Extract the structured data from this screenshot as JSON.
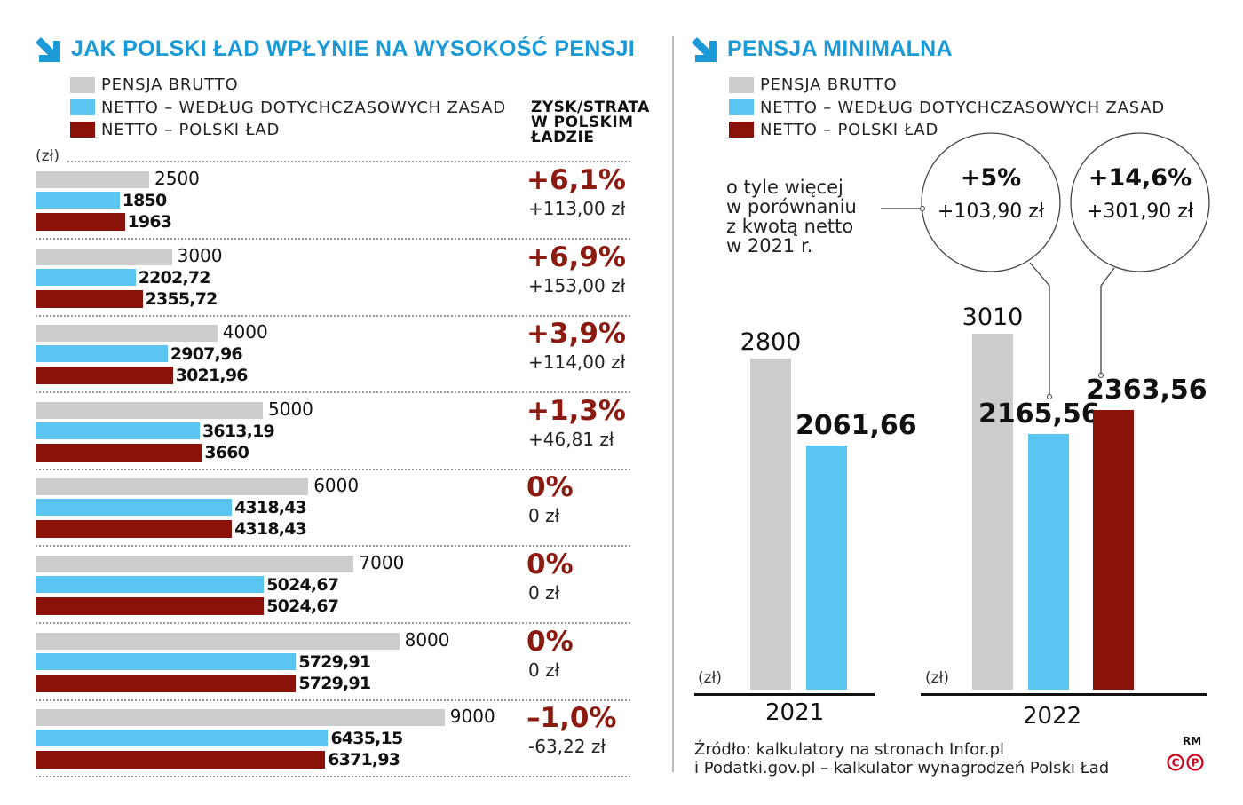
{
  "colors": {
    "title": "#1a9ad6",
    "brutto": "#cccccc",
    "netto_old": "#5bc5f2",
    "netto_new": "#8b1209",
    "gain_text": "#8b1a10"
  },
  "left": {
    "title": "JAK POLSKI ŁAD WPŁYNIE NA WYSOKOŚĆ PENSJI",
    "title_icon": "arrow-down-right-icon",
    "legend": [
      "PENSJA BRUTTO",
      "NETTO – WEDŁUG DOTYCHCZASOWYCH ZASAD",
      "NETTO – POLSKI ŁAD"
    ],
    "column_header": [
      "ZYSK/STRATA",
      "W POLSKIM",
      "ŁADZIE"
    ],
    "unit": "(zł)"
  },
  "right": {
    "title": "PENSJA MINIMALNA",
    "title_icon": "arrow-down-right-icon",
    "legend": [
      "PENSJA BRUTTO",
      "NETTO – WEDŁUG DOTYCHCZASOWYCH ZASAD",
      "NETTO – POLSKI ŁAD"
    ],
    "note": [
      "o tyle więcej",
      "w porównaniu",
      "z kwotą netto",
      "w 2021 r."
    ],
    "bubbles": [
      {
        "pct": "+5%",
        "amount": "+103,90 zł"
      },
      {
        "pct": "+14,6%",
        "amount": "+301,90 zł"
      }
    ],
    "unit": "(zł)"
  },
  "chart_data": [
    {
      "type": "bar",
      "orientation": "horizontal",
      "categories": [
        "2500",
        "3000",
        "4000",
        "5000",
        "6000",
        "7000",
        "8000",
        "9000"
      ],
      "series": [
        {
          "name": "PENSJA BRUTTO",
          "values": [
            2500,
            3000,
            4000,
            5000,
            6000,
            7000,
            8000,
            9000
          ],
          "labels": [
            "2500",
            "3000",
            "4000",
            "5000",
            "6000",
            "7000",
            "8000",
            "9000"
          ]
        },
        {
          "name": "NETTO – WEDŁUG DOTYCHCZASOWYCH ZASAD",
          "values": [
            1850,
            2202.72,
            2907.96,
            3613.19,
            4318.43,
            5024.67,
            5729.91,
            6435.15
          ],
          "labels": [
            "1850",
            "2202,72",
            "2907,96",
            "3613,19",
            "4318,43",
            "5024,67",
            "5729,91",
            "6435,15"
          ]
        },
        {
          "name": "NETTO – POLSKI ŁAD",
          "values": [
            1963,
            2355.72,
            3021.96,
            3660,
            4318.43,
            5024.67,
            5729.91,
            6371.93
          ],
          "labels": [
            "1963",
            "2355,72",
            "3021,96",
            "3660",
            "4318,43",
            "5024,67",
            "5729,91",
            "6371,93"
          ]
        }
      ],
      "change_pct": [
        "+6,1%",
        "+6,9%",
        "+3,9%",
        "+1,3%",
        "0%",
        "0%",
        "0%",
        "–1,0%"
      ],
      "change_amount": [
        "+113,00 zł",
        "+153,00 zł",
        "+114,00 zł",
        "+46,81 zł",
        "0 zł",
        "0 zł",
        "0 zł",
        "-63,22 zł"
      ],
      "xlim": [
        0,
        9000
      ]
    },
    {
      "type": "bar",
      "orientation": "vertical",
      "categories": [
        "2021",
        "2022"
      ],
      "series": [
        {
          "name": "PENSJA BRUTTO",
          "values": [
            2800,
            3010
          ],
          "labels": [
            "2800",
            "3010"
          ]
        },
        {
          "name": "NETTO – WEDŁUG DOTYCHCZASOWYCH ZASAD",
          "values": [
            2061.66,
            2165.56
          ],
          "labels": [
            "2061,66",
            "2165,56"
          ]
        },
        {
          "name": "NETTO – POLSKI ŁAD",
          "values": [
            null,
            2363.56
          ],
          "labels": [
            "",
            "2363,56"
          ]
        }
      ],
      "ylim": [
        0,
        3010
      ]
    }
  ],
  "source": [
    "Źródło: kalkulatory na stronach Infor.pl",
    "i Podatki.gov.pl – kalkulator wynagrodzeń Polski Ład"
  ],
  "credit": {
    "initials": "RM",
    "logo": "copyright-p-logo"
  }
}
